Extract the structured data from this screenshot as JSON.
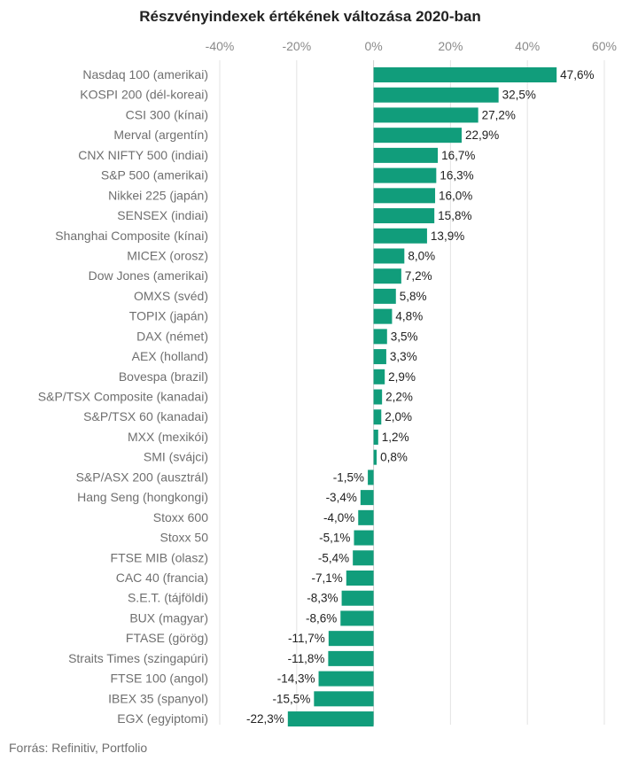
{
  "source": "Forrás: Refinitiv, Portfolio",
  "chart_data": {
    "type": "bar",
    "orientation": "horizontal",
    "title": "Részvényindexek értékének változása 2020-ban",
    "xlim": [
      -40,
      60
    ],
    "ticks": [
      -40,
      -20,
      0,
      20,
      40,
      60
    ],
    "tick_labels": [
      "-40%",
      "-20%",
      "0%",
      "20%",
      "40%",
      "60%"
    ],
    "axis_position": "top",
    "grid": true,
    "bar_color": "#119d7b",
    "categories": [
      "Nasdaq 100 (amerikai)",
      "KOSPI 200 (dél-koreai)",
      "CSI 300 (kínai)",
      "Merval (argentín)",
      "CNX NIFTY 500 (indiai)",
      "S&P 500 (amerikai)",
      "Nikkei 225 (japán)",
      "SENSEX (indiai)",
      "Shanghai Composite (kínai)",
      "MICEX (orosz)",
      "Dow Jones (amerikai)",
      "OMXS (svéd)",
      "TOPIX (japán)",
      "DAX (német)",
      "AEX (holland)",
      "Bovespa (brazil)",
      "S&P/TSX Composite (kanadai)",
      "S&P/TSX 60 (kanadai)",
      "MXX (mexikói)",
      "SMI (svájci)",
      "S&P/ASX 200 (ausztrál)",
      "Hang Seng (hongkongi)",
      "Stoxx 600",
      "Stoxx 50",
      "FTSE MIB (olasz)",
      "CAC 40 (francia)",
      "S.E.T. (tájföldi)",
      "BUX (magyar)",
      "FTASE (görög)",
      "Straits Times (szingapúri)",
      "FTSE 100 (angol)",
      "IBEX 35 (spanyol)",
      "EGX (egyiptomi)"
    ],
    "values": [
      47.6,
      32.5,
      27.2,
      22.9,
      16.7,
      16.3,
      16.0,
      15.8,
      13.9,
      8.0,
      7.2,
      5.8,
      4.8,
      3.5,
      3.3,
      2.9,
      2.2,
      2.0,
      1.2,
      0.8,
      -1.5,
      -3.4,
      -4.0,
      -5.1,
      -5.4,
      -7.1,
      -8.3,
      -8.6,
      -11.7,
      -11.8,
      -14.3,
      -15.5,
      -22.3
    ],
    "value_labels": [
      "47,6%",
      "32,5%",
      "27,2%",
      "22,9%",
      "16,7%",
      "16,3%",
      "16,0%",
      "15,8%",
      "13,9%",
      "8,0%",
      "7,2%",
      "5,8%",
      "4,8%",
      "3,5%",
      "3,3%",
      "2,9%",
      "2,2%",
      "2,0%",
      "1,2%",
      "0,8%",
      "-1,5%",
      "-3,4%",
      "-4,0%",
      "-5,1%",
      "-5,4%",
      "-7,1%",
      "-8,3%",
      "-8,6%",
      "-11,7%",
      "-11,8%",
      "-14,3%",
      "-15,5%",
      "-22,3%"
    ]
  }
}
